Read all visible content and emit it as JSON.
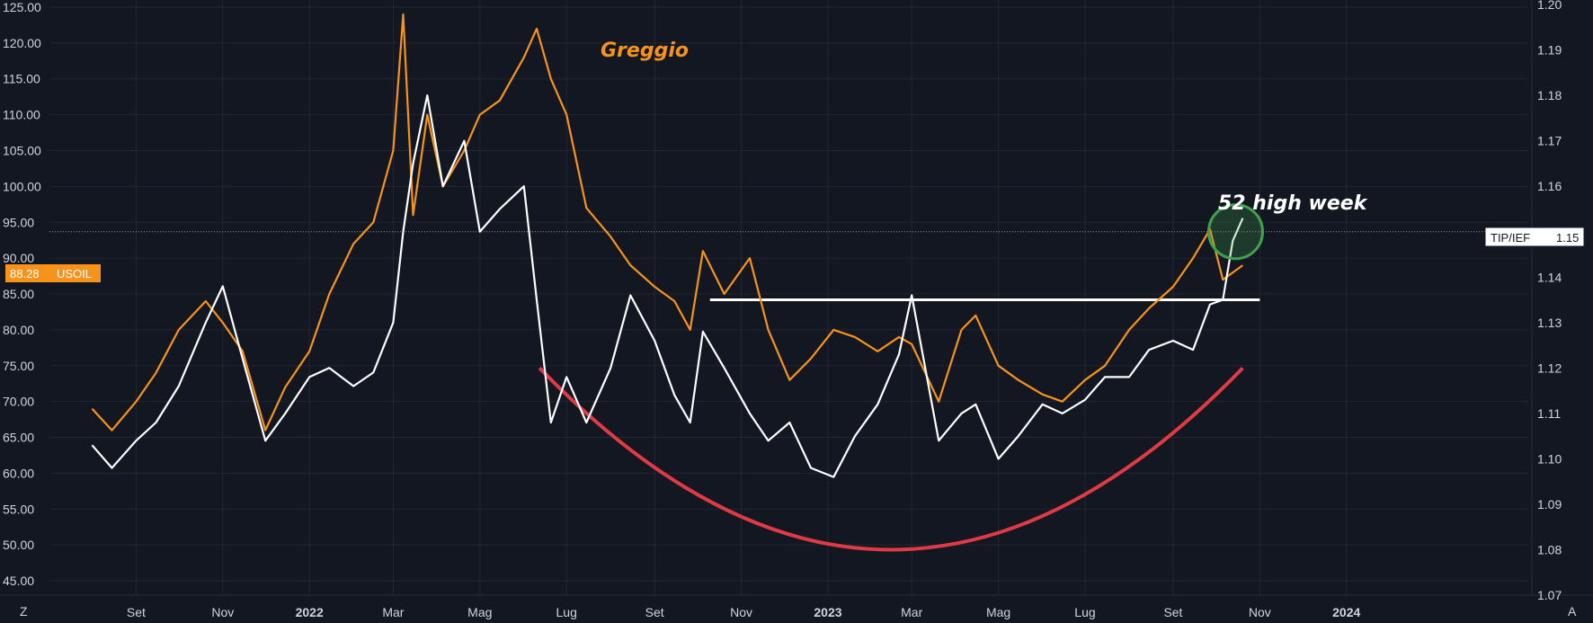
{
  "chart_data": {
    "type": "line",
    "title": "",
    "xlabel": "",
    "ylabel": "",
    "x_ticks": [
      "Set",
      "Nov",
      "2022",
      "Mar",
      "Mag",
      "Lug",
      "Set",
      "Nov",
      "2023",
      "Mar",
      "Mag",
      "Lug",
      "Set",
      "Nov",
      "2024"
    ],
    "x_ticks_bold": [
      "2022",
      "2023",
      "2024"
    ],
    "left_axis": {
      "ylim": [
        43,
        126
      ],
      "ticks": [
        "125.00",
        "120.00",
        "115.00",
        "110.00",
        "105.00",
        "100.00",
        "95.00",
        "90.00",
        "85.00",
        "80.00",
        "75.00",
        "70.00",
        "65.00",
        "60.00",
        "55.00",
        "50.00",
        "45.00"
      ]
    },
    "right_axis": {
      "ylim": [
        1.07,
        1.201
      ],
      "ticks": [
        "1.20",
        "1.19",
        "1.18",
        "1.17",
        "1.16",
        "1.15",
        "1.14",
        "1.13",
        "1.12",
        "1.11",
        "1.10",
        "1.09",
        "1.08",
        "1.07"
      ]
    },
    "series": [
      {
        "name": "USOIL",
        "axis": "left",
        "color": "#f7931a",
        "x": [
          "2021-08-01",
          "2021-08-15",
          "2021-09-01",
          "2021-09-15",
          "2021-10-01",
          "2021-10-20",
          "2021-11-01",
          "2021-11-15",
          "2021-12-01",
          "2021-12-15",
          "2022-01-01",
          "2022-01-15",
          "2022-02-01",
          "2022-02-15",
          "2022-03-01",
          "2022-03-08",
          "2022-03-15",
          "2022-03-25",
          "2022-04-05",
          "2022-04-20",
          "2022-05-01",
          "2022-05-15",
          "2022-06-01",
          "2022-06-10",
          "2022-06-20",
          "2022-07-01",
          "2022-07-15",
          "2022-08-01",
          "2022-08-15",
          "2022-09-01",
          "2022-09-15",
          "2022-09-26",
          "2022-10-05",
          "2022-10-20",
          "2022-11-07",
          "2022-11-20",
          "2022-12-05",
          "2022-12-20",
          "2023-01-05",
          "2023-01-20",
          "2023-02-05",
          "2023-02-20",
          "2023-03-01",
          "2023-03-20",
          "2023-04-05",
          "2023-04-15",
          "2023-05-01",
          "2023-05-15",
          "2023-06-01",
          "2023-06-15",
          "2023-07-01",
          "2023-07-15",
          "2023-08-01",
          "2023-08-15",
          "2023-09-01",
          "2023-09-15",
          "2023-09-27",
          "2023-10-06",
          "2023-10-13",
          "2023-10-20"
        ],
        "y": [
          69,
          66,
          70,
          74,
          80,
          84,
          81,
          77,
          66,
          72,
          77,
          85,
          92,
          95,
          105,
          124,
          96,
          110,
          100,
          105,
          110,
          112,
          118,
          122,
          115,
          110,
          97,
          93,
          89,
          86,
          84,
          80,
          91,
          85,
          90,
          80,
          73,
          76,
          80,
          79,
          77,
          79,
          78,
          70,
          80,
          82,
          75,
          73,
          71,
          70,
          73,
          75,
          80,
          83,
          86,
          90,
          94,
          87,
          88,
          89
        ]
      },
      {
        "name": "TIP/IEF",
        "axis": "right",
        "color": "#ffffff",
        "x": [
          "2021-08-01",
          "2021-08-15",
          "2021-09-01",
          "2021-09-15",
          "2021-10-01",
          "2021-10-20",
          "2021-11-01",
          "2021-11-15",
          "2021-12-01",
          "2021-12-15",
          "2022-01-01",
          "2022-01-15",
          "2022-02-01",
          "2022-02-15",
          "2022-03-01",
          "2022-03-08",
          "2022-03-15",
          "2022-03-25",
          "2022-04-05",
          "2022-04-20",
          "2022-05-01",
          "2022-05-15",
          "2022-06-01",
          "2022-06-10",
          "2022-06-20",
          "2022-07-01",
          "2022-07-15",
          "2022-08-01",
          "2022-08-15",
          "2022-09-01",
          "2022-09-15",
          "2022-09-26",
          "2022-10-05",
          "2022-10-20",
          "2022-11-07",
          "2022-11-20",
          "2022-12-05",
          "2022-12-20",
          "2023-01-05",
          "2023-01-20",
          "2023-02-05",
          "2023-02-20",
          "2023-03-01",
          "2023-03-20",
          "2023-04-05",
          "2023-04-15",
          "2023-05-01",
          "2023-05-15",
          "2023-06-01",
          "2023-06-15",
          "2023-07-01",
          "2023-07-15",
          "2023-08-01",
          "2023-08-15",
          "2023-09-01",
          "2023-09-15",
          "2023-09-27",
          "2023-10-06",
          "2023-10-13",
          "2023-10-20"
        ],
        "y": [
          1.103,
          1.098,
          1.104,
          1.108,
          1.116,
          1.13,
          1.138,
          1.122,
          1.104,
          1.11,
          1.118,
          1.12,
          1.116,
          1.119,
          1.13,
          1.15,
          1.165,
          1.18,
          1.16,
          1.17,
          1.15,
          1.155,
          1.16,
          1.135,
          1.108,
          1.118,
          1.108,
          1.12,
          1.136,
          1.126,
          1.114,
          1.108,
          1.128,
          1.12,
          1.11,
          1.104,
          1.108,
          1.098,
          1.096,
          1.105,
          1.112,
          1.123,
          1.136,
          1.104,
          1.11,
          1.112,
          1.1,
          1.105,
          1.112,
          1.11,
          1.113,
          1.118,
          1.118,
          1.124,
          1.126,
          1.124,
          1.134,
          1.135,
          1.148,
          1.153
        ]
      }
    ],
    "annotations": {
      "title_oil": "Greggio",
      "label_high": "52 high week",
      "resistance_level": 1.135,
      "resistance_span": [
        "2022-10-10",
        "2023-11-01"
      ],
      "cup_arc_color": "#e03a45",
      "highlight_circle_color": "#3fa34d"
    },
    "right_tag": {
      "label": "TIP/IEF",
      "value": "1.15"
    },
    "left_tag": {
      "value": "88.28",
      "label": "USOIL",
      "color": "#f7931a"
    },
    "corner_left": "Z",
    "corner_right": "A",
    "grid": true,
    "legend": "none"
  }
}
